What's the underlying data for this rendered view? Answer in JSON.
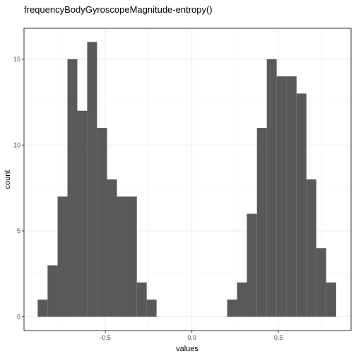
{
  "chart_data": {
    "type": "bar",
    "subtype": "histogram",
    "title": "frequencyBodyGyroscopeMagnitude-entropy()",
    "xlabel": "values",
    "ylabel": "count",
    "xlim": [
      -0.97,
      0.92
    ],
    "ylim": [
      -0.8,
      16.8
    ],
    "x_ticks": [
      -0.5,
      0.0,
      0.5
    ],
    "x_tick_labels": [
      "-0.5",
      "0.0",
      "0.5"
    ],
    "y_ticks": [
      0,
      5,
      10,
      15
    ],
    "y_tick_labels": [
      "0",
      "5",
      "10",
      "15"
    ],
    "grid": true,
    "theme": "bw",
    "bar_color": "#595959",
    "bins": [
      {
        "x0": -0.891,
        "x1": -0.834,
        "count": 1
      },
      {
        "x0": -0.834,
        "x1": -0.776,
        "count": 3
      },
      {
        "x0": -0.776,
        "x1": -0.719,
        "count": 7
      },
      {
        "x0": -0.719,
        "x1": -0.662,
        "count": 15
      },
      {
        "x0": -0.662,
        "x1": -0.605,
        "count": 12
      },
      {
        "x0": -0.605,
        "x1": -0.548,
        "count": 16
      },
      {
        "x0": -0.548,
        "x1": -0.49,
        "count": 11
      },
      {
        "x0": -0.49,
        "x1": -0.433,
        "count": 8
      },
      {
        "x0": -0.433,
        "x1": -0.376,
        "count": 7
      },
      {
        "x0": -0.376,
        "x1": -0.318,
        "count": 7
      },
      {
        "x0": -0.318,
        "x1": -0.261,
        "count": 2
      },
      {
        "x0": -0.261,
        "x1": -0.204,
        "count": 1
      },
      {
        "x0": 0.204,
        "x1": 0.261,
        "count": 1
      },
      {
        "x0": 0.261,
        "x1": 0.318,
        "count": 2
      },
      {
        "x0": 0.318,
        "x1": 0.376,
        "count": 6
      },
      {
        "x0": 0.376,
        "x1": 0.433,
        "count": 11
      },
      {
        "x0": 0.433,
        "x1": 0.49,
        "count": 15
      },
      {
        "x0": 0.49,
        "x1": 0.548,
        "count": 14
      },
      {
        "x0": 0.548,
        "x1": 0.605,
        "count": 14
      },
      {
        "x0": 0.605,
        "x1": 0.662,
        "count": 13
      },
      {
        "x0": 0.662,
        "x1": 0.719,
        "count": 8
      },
      {
        "x0": 0.719,
        "x1": 0.776,
        "count": 4
      },
      {
        "x0": 0.776,
        "x1": 0.834,
        "count": 2
      }
    ]
  }
}
